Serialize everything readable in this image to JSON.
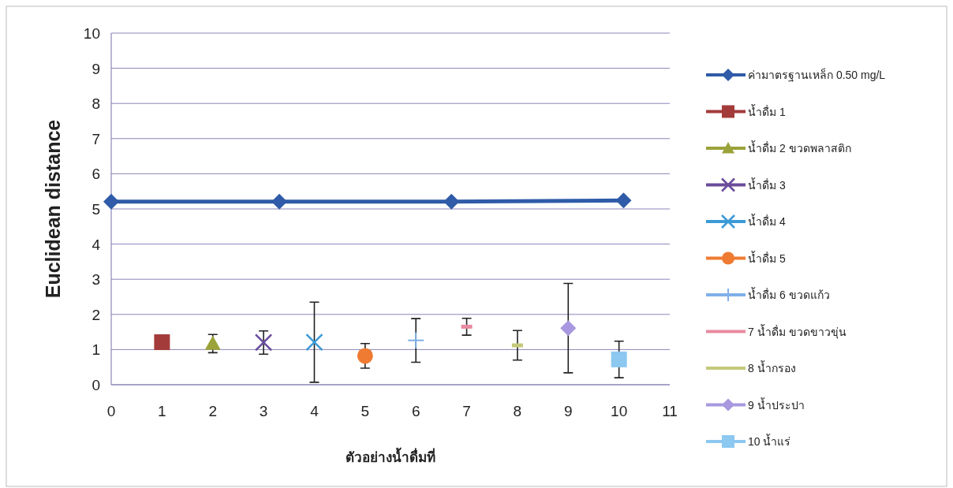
{
  "chart_data": {
    "type": "scatter",
    "xlabel": "ตัวอย่างน้ำดื่มที่",
    "ylabel": "Euclidean distance",
    "xlim": [
      0,
      11
    ],
    "xticks": [
      0,
      1,
      2,
      3,
      4,
      5,
      6,
      7,
      8,
      9,
      10,
      11
    ],
    "ylim": [
      0,
      10
    ],
    "yticks": [
      0,
      1,
      2,
      3,
      4,
      5,
      6,
      7,
      8,
      9,
      10
    ],
    "grid": "y",
    "legend": "right",
    "series": [
      {
        "name": "ค่ามาตรฐานเหล็ก 0.50 mg/L",
        "type": "line",
        "marker": "diamond",
        "color": "#2f5ba8",
        "x": [
          0,
          3.31,
          6.7,
          10.09
        ],
        "values": [
          5.21,
          5.21,
          5.21,
          5.24
        ]
      },
      {
        "name": "น้ำดื่ม 1",
        "marker": "square",
        "color": "#a33b3b",
        "x": [
          1
        ],
        "values": [
          1.21
        ]
      },
      {
        "name": "น้ำดื่ม 2 ขวดพลาสติก",
        "marker": "triangle",
        "color": "#9aa23a",
        "x": [
          2
        ],
        "values": [
          1.17
        ],
        "errors": [
          0.26
        ]
      },
      {
        "name": "น้ำดื่ม 3",
        "marker": "cross",
        "color": "#6a4c9c",
        "x": [
          3
        ],
        "values": [
          1.2
        ],
        "errors": [
          0.33
        ]
      },
      {
        "name": "น้ำดื่ม 4",
        "marker": "cross",
        "color": "#3b9ad6",
        "x": [
          4
        ],
        "values": [
          1.21
        ],
        "errors": [
          1.14
        ]
      },
      {
        "name": "น้ำดื่ม 5",
        "marker": "circle",
        "color": "#ef7b32",
        "x": [
          5
        ],
        "values": [
          0.82
        ],
        "errors": [
          0.35
        ]
      },
      {
        "name": "น้ำดื่ม 6 ขวดแก้ว",
        "marker": "plus",
        "color": "#7fb0e8",
        "x": [
          6
        ],
        "values": [
          1.26
        ],
        "errors": [
          0.62
        ]
      },
      {
        "name": "7 น้ำดื่ม ขวดขาวขุ่น",
        "color": "#e88aa0",
        "x": [
          7
        ],
        "values": [
          1.65
        ],
        "errors": [
          0.24
        ]
      },
      {
        "name": "8 น้ำกรอง",
        "color": "#c3c97a",
        "x": [
          8
        ],
        "values": [
          1.12
        ],
        "errors": [
          0.42
        ]
      },
      {
        "name": "9 น้ำประปา",
        "marker": "diamond",
        "color": "#a898e0",
        "x": [
          9
        ],
        "values": [
          1.61
        ],
        "errors": [
          1.27
        ]
      },
      {
        "name": "10 น้ำแร่",
        "marker": "square",
        "color": "#8cc8f0",
        "x": [
          10
        ],
        "values": [
          0.72
        ],
        "errors": [
          0.52
        ]
      }
    ]
  }
}
